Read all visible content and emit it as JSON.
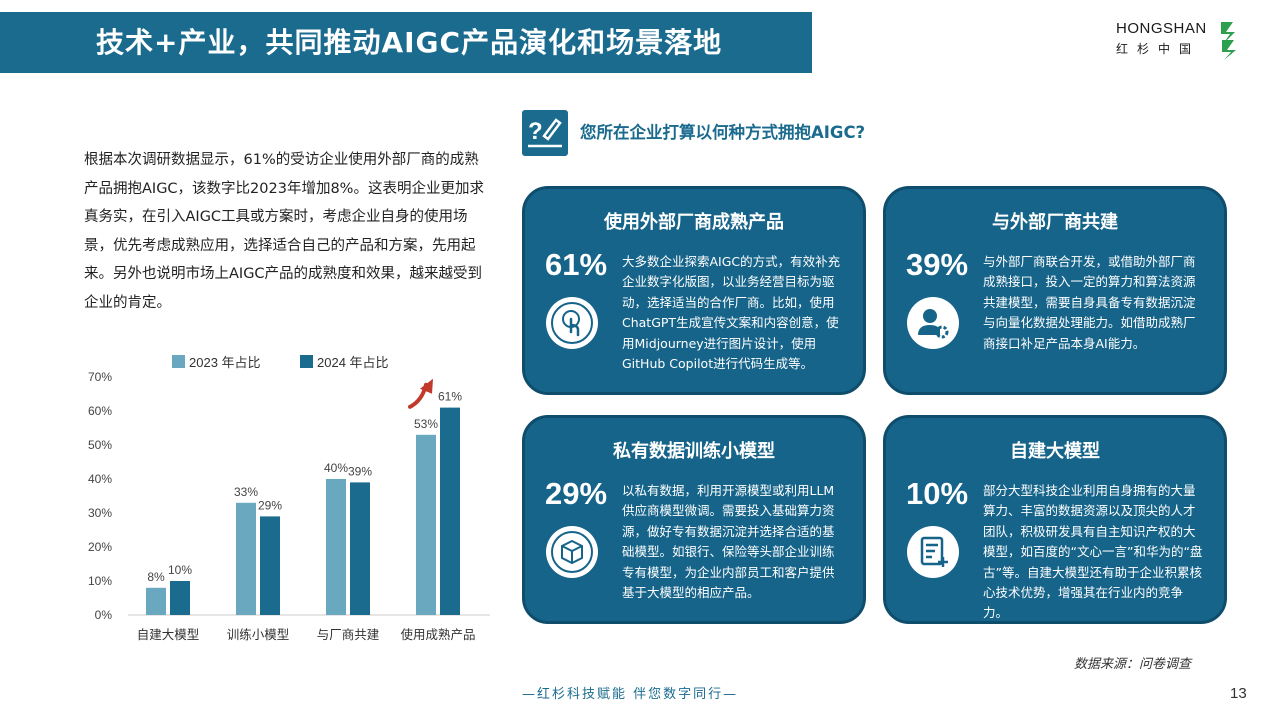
{
  "header": {
    "title": "技术+产业，共同推动AIGC产品演化和场景落地"
  },
  "logo": {
    "en": "HONGSHAN",
    "cn": "红杉中国"
  },
  "intro": "根据本次调研数据显示，61%的受访企业使用外部厂商的成熟产品拥抱AIGC，该数字比2023年增加8%。这表明企业更加求真务实，在引入AIGC工具或方案时，考虑企业自身的使用场景，优先考虑成熟应用，选择适合自己的产品和方案，先用起来。另外也说明市场上AIGC产品的成熟度和效果，越来越受到企业的肯定。",
  "question": "您所在企业打算以何种方式拥抱AIGC?",
  "cards": [
    {
      "title": "使用外部厂商成熟产品",
      "pct": "61%",
      "icon": "touch-icon",
      "body": "大多数企业探索AIGC的方式，有效补充企业数字化版图，以业务经营目标为驱动，选择适当的合作厂商。比如，使用ChatGPT生成宣传文案和内容创意，使用Midjourney进行图片设计，使用GitHub Copilot进行代码生成等。"
    },
    {
      "title": "与外部厂商共建",
      "pct": "39%",
      "icon": "user-gear-icon",
      "body": "与外部厂商联合开发，或借助外部厂商成熟接口，投入一定的算力和算法资源共建模型，需要自身具备专有数据沉淀与向量化数据处理能力。如借助成熟厂商接口补足产品本身AI能力。"
    },
    {
      "title": "私有数据训练小模型",
      "pct": "29%",
      "icon": "cube-icon",
      "body": "以私有数据，利用开源模型或利用LLM供应商模型微调。需要投入基础算力资源，做好专有数据沉淀并选择合适的基础模型。如银行、保险等头部企业训练专有模型，为企业内部员工和客户提供基于大模型的相应产品。"
    },
    {
      "title": "自建大模型",
      "pct": "10%",
      "icon": "document-icon",
      "body": "部分大型科技企业利用自身拥有的大量算力、丰富的数据资源以及顶尖的人才团队，积极研发具有自主知识产权的大模型，如百度的“文心一言”和华为的“盘古”等。自建大模型还有助于企业积累核心技术优势，增强其在行业内的竞争力。"
    }
  ],
  "chart_data": {
    "type": "bar",
    "categories": [
      "自建大模型",
      "训练小模型",
      "与厂商共建",
      "使用成熟产品"
    ],
    "series": [
      {
        "name": "2023 年占比",
        "values": [
          8,
          33,
          40,
          53
        ],
        "labels": [
          "8%",
          "33%",
          "40%",
          "53%"
        ],
        "color": "#6aa8c0"
      },
      {
        "name": "2024 年占比",
        "values": [
          10,
          29,
          39,
          61
        ],
        "labels": [
          "10%",
          "29%",
          "39%",
          "61%"
        ],
        "color": "#1b6b8f"
      }
    ],
    "ylim": [
      0,
      70
    ],
    "yticks": [
      "0%",
      "10%",
      "20%",
      "30%",
      "40%",
      "50%",
      "60%",
      "70%"
    ],
    "legend": "top",
    "grid": false
  },
  "footer": {
    "source": "数据来源：问卷调查",
    "slogan": "—红杉科技赋能  伴您数字同行—",
    "page": "13"
  },
  "colors": {
    "primary": "#1b6b8f",
    "card": "#16648a",
    "light_bar": "#6aa8c0",
    "arrow": "#c0392b"
  }
}
